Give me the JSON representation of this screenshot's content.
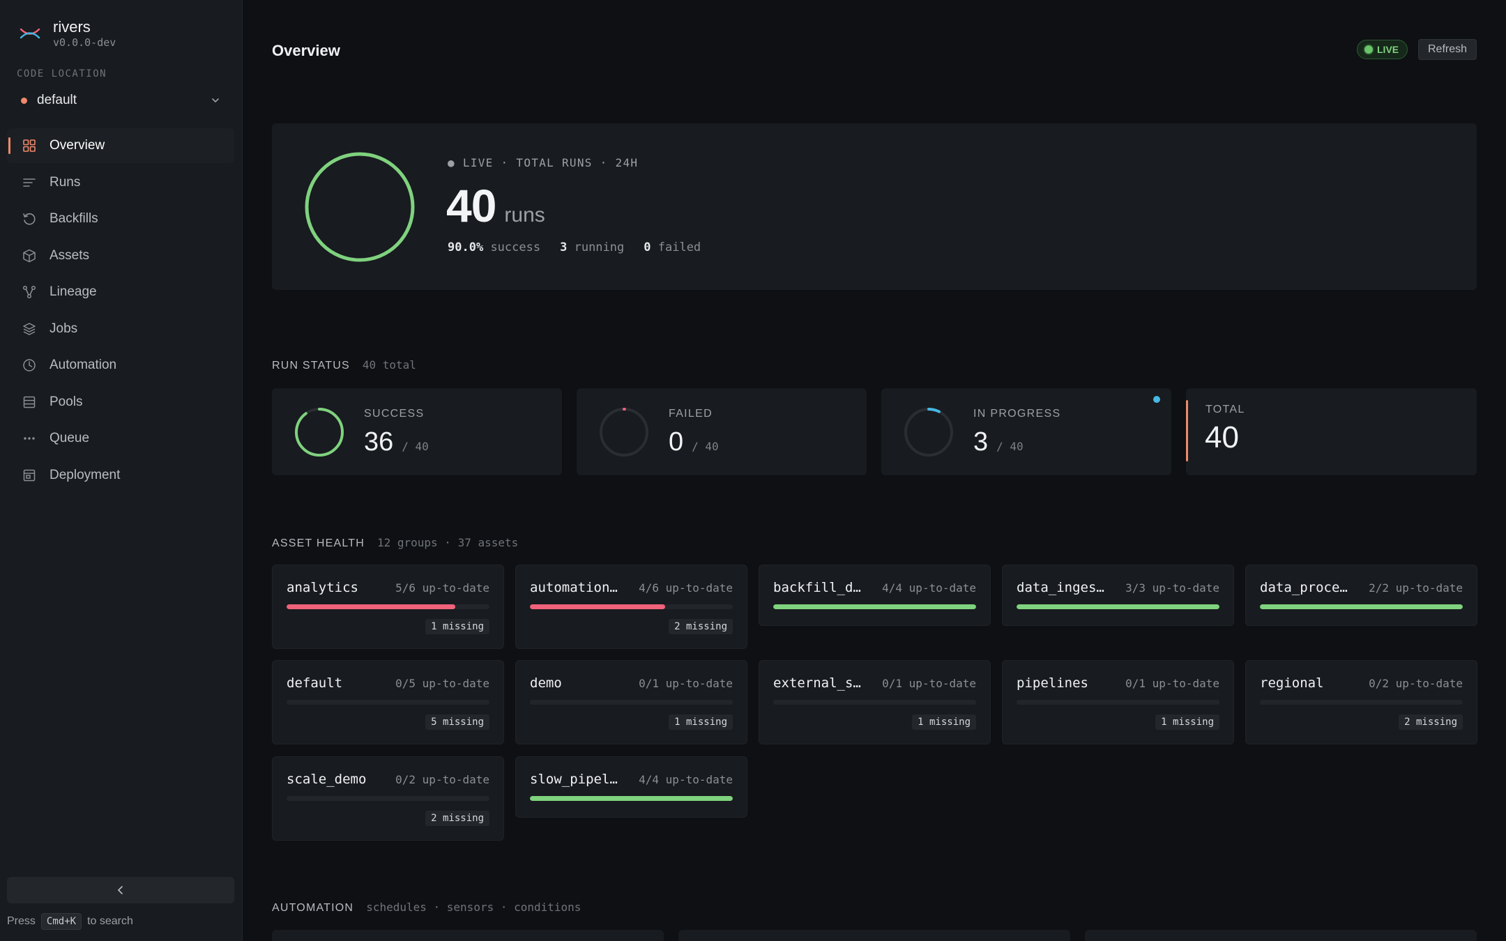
{
  "app": {
    "name": "rivers",
    "version": "v0.0.0-dev"
  },
  "sidebar": {
    "code_location_label": "CODE LOCATION",
    "code_location_value": "default",
    "items": [
      {
        "label": "Overview",
        "icon": "grid-icon",
        "active": true
      },
      {
        "label": "Runs",
        "icon": "list-icon"
      },
      {
        "label": "Backfills",
        "icon": "history-icon"
      },
      {
        "label": "Assets",
        "icon": "cube-icon"
      },
      {
        "label": "Lineage",
        "icon": "graph-icon"
      },
      {
        "label": "Jobs",
        "icon": "layers-icon"
      },
      {
        "label": "Automation",
        "icon": "clock-icon"
      },
      {
        "label": "Pools",
        "icon": "database-icon"
      },
      {
        "label": "Queue",
        "icon": "dots-icon"
      },
      {
        "label": "Deployment",
        "icon": "deploy-icon"
      }
    ],
    "search_hint": {
      "prefix": "Press",
      "key": "Cmd+K",
      "suffix": "to search"
    }
  },
  "header": {
    "title": "Overview",
    "live_label": "LIVE",
    "refresh_label": "Refresh"
  },
  "hero": {
    "kicker": "● LIVE · TOTAL RUNS · 24H",
    "count": "40",
    "unit": "runs",
    "success_pct": "90.0%",
    "success_label": "success",
    "running": "3",
    "running_label": "running",
    "failed": "0",
    "failed_label": "failed",
    "ring_fraction": 1.0,
    "ring_color": "#7fd27e"
  },
  "run_status": {
    "title": "RUN STATUS",
    "subtitle": "40 total",
    "cards": [
      {
        "label": "SUCCESS",
        "value": "36",
        "of": "/ 40",
        "fraction": 0.9,
        "color": "#7fd27e"
      },
      {
        "label": "FAILED",
        "value": "0",
        "of": "/ 40",
        "fraction": 0.0,
        "color": "#f0627a"
      },
      {
        "label": "IN PROGRESS",
        "value": "3",
        "of": "/ 40",
        "fraction": 0.075,
        "color": "#47b7e4"
      }
    ],
    "total": {
      "label": "TOTAL",
      "value": "40"
    }
  },
  "asset_health": {
    "title": "ASSET HEALTH",
    "subtitle": "12 groups · 37 assets",
    "groups": [
      {
        "name": "analytics",
        "frac": "5/6 up-to-date",
        "ratio": 0.833,
        "color": "#f0627a",
        "missing": "1 missing"
      },
      {
        "name": "automation…",
        "frac": "4/6 up-to-date",
        "ratio": 0.667,
        "color": "#f0627a",
        "missing": "2 missing"
      },
      {
        "name": "backfill_d…",
        "frac": "4/4 up-to-date",
        "ratio": 1.0,
        "color": "#7fd27e",
        "missing": ""
      },
      {
        "name": "data_inges…",
        "frac": "3/3 up-to-date",
        "ratio": 1.0,
        "color": "#7fd27e",
        "missing": ""
      },
      {
        "name": "data_proce…",
        "frac": "2/2 up-to-date",
        "ratio": 1.0,
        "color": "#7fd27e",
        "missing": ""
      },
      {
        "name": "default",
        "frac": "0/5 up-to-date",
        "ratio": 0.0,
        "color": "#7fd27e",
        "missing": "5 missing"
      },
      {
        "name": "demo",
        "frac": "0/1 up-to-date",
        "ratio": 0.0,
        "color": "#7fd27e",
        "missing": "1 missing"
      },
      {
        "name": "external_s…",
        "frac": "0/1 up-to-date",
        "ratio": 0.0,
        "color": "#7fd27e",
        "missing": "1 missing"
      },
      {
        "name": "pipelines",
        "frac": "0/1 up-to-date",
        "ratio": 0.0,
        "color": "#7fd27e",
        "missing": "1 missing"
      },
      {
        "name": "regional",
        "frac": "0/2 up-to-date",
        "ratio": 0.0,
        "color": "#7fd27e",
        "missing": "2 missing"
      },
      {
        "name": "scale_demo",
        "frac": "0/2 up-to-date",
        "ratio": 0.0,
        "color": "#7fd27e",
        "missing": "2 missing"
      },
      {
        "name": "slow_pipel…",
        "frac": "4/4 up-to-date",
        "ratio": 1.0,
        "color": "#7fd27e",
        "missing": ""
      }
    ]
  },
  "automation": {
    "title": "AUTOMATION",
    "subtitle": "schedules · sensors · conditions"
  }
}
